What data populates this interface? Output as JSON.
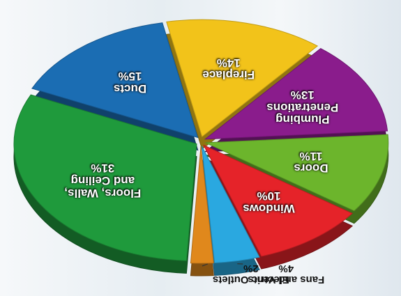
{
  "chart_data": {
    "type": "pie",
    "categories": [
      "Electric Outlets",
      "Floors, Walls, and Ceiling",
      "Ducts",
      "Fireplace",
      "Plumbing Penetrations",
      "Doors",
      "Windows",
      "Fans and Vents"
    ],
    "values": [
      2,
      31,
      15,
      14,
      13,
      11,
      10,
      4
    ],
    "value_labels": [
      "2%",
      "31%",
      "15%",
      "14%",
      "13%",
      "11%",
      "10%",
      "4%"
    ],
    "colors": [
      "#e0881c",
      "#1f9a3c",
      "#1b6db3",
      "#f2c31a",
      "#8a1c8c",
      "#6cb52c",
      "#e52329",
      "#2aa8e0"
    ]
  }
}
